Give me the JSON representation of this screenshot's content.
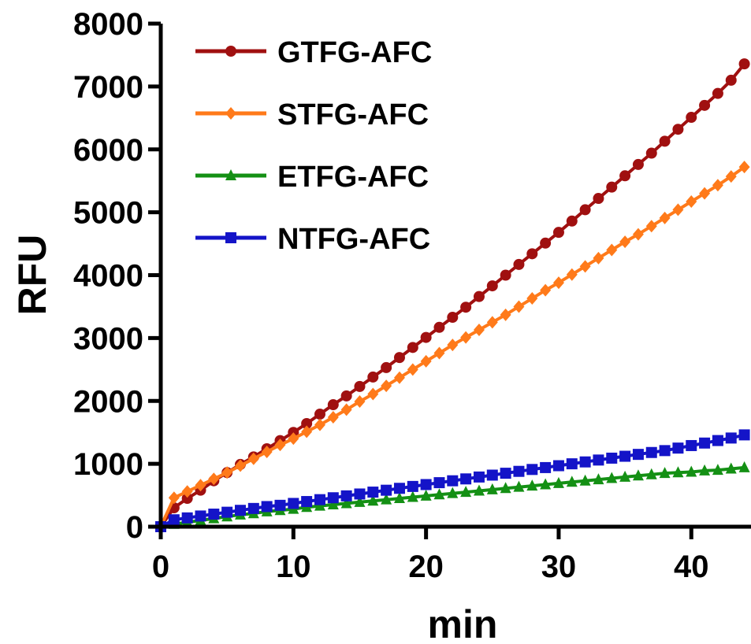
{
  "chart_data": {
    "type": "line",
    "title": "",
    "xlabel": "min",
    "ylabel": "RFU",
    "xlim": [
      0,
      44.5
    ],
    "ylim": [
      0,
      8000
    ],
    "xticks": [
      0,
      10,
      20,
      30,
      40
    ],
    "yticks": [
      0,
      1000,
      2000,
      3000,
      4000,
      5000,
      6000,
      7000,
      8000
    ],
    "grid": false,
    "legend": "top-left",
    "x": [
      0,
      1,
      2,
      3,
      4,
      5,
      6,
      7,
      8,
      9,
      10,
      11,
      12,
      13,
      14,
      15,
      16,
      17,
      18,
      19,
      20,
      21,
      22,
      23,
      24,
      25,
      26,
      27,
      28,
      29,
      30,
      31,
      32,
      33,
      34,
      35,
      36,
      37,
      38,
      39,
      40,
      41,
      42,
      43,
      44
    ],
    "series": [
      {
        "name": "GTFG-AFC",
        "color": "#a01010",
        "marker": "circle",
        "values": [
          0,
          300,
          450,
          580,
          730,
          860,
          990,
          1110,
          1240,
          1370,
          1500,
          1640,
          1790,
          1940,
          2080,
          2230,
          2380,
          2530,
          2690,
          2850,
          3010,
          3170,
          3330,
          3490,
          3660,
          3830,
          4000,
          4170,
          4340,
          4510,
          4680,
          4860,
          5040,
          5220,
          5400,
          5580,
          5760,
          5940,
          6130,
          6320,
          6510,
          6700,
          6890,
          7100,
          7360
        ]
      },
      {
        "name": "STFG-AFC",
        "color": "#ff7a1a",
        "marker": "diamond",
        "values": [
          0,
          460,
          560,
          660,
          760,
          860,
          970,
          1080,
          1190,
          1300,
          1400,
          1510,
          1620,
          1740,
          1860,
          1990,
          2110,
          2240,
          2370,
          2500,
          2630,
          2760,
          2890,
          3010,
          3130,
          3250,
          3370,
          3500,
          3630,
          3760,
          3880,
          4010,
          4140,
          4270,
          4400,
          4530,
          4650,
          4780,
          4910,
          5040,
          5170,
          5300,
          5430,
          5570,
          5720
        ]
      },
      {
        "name": "ETFG-AFC",
        "color": "#149014",
        "marker": "triangle",
        "values": [
          0,
          40,
          70,
          100,
          130,
          160,
          190,
          210,
          240,
          260,
          280,
          310,
          330,
          350,
          370,
          390,
          410,
          430,
          450,
          470,
          490,
          510,
          530,
          550,
          570,
          590,
          610,
          630,
          650,
          670,
          690,
          710,
          730,
          750,
          770,
          790,
          810,
          830,
          850,
          860,
          870,
          890,
          900,
          920,
          940
        ]
      },
      {
        "name": "NTFG-AFC",
        "color": "#1414c8",
        "marker": "square",
        "values": [
          0,
          110,
          140,
          170,
          200,
          230,
          260,
          290,
          320,
          340,
          370,
          400,
          430,
          460,
          490,
          520,
          550,
          580,
          610,
          640,
          670,
          700,
          730,
          760,
          790,
          820,
          850,
          880,
          910,
          940,
          970,
          1000,
          1030,
          1060,
          1090,
          1120,
          1150,
          1180,
          1210,
          1250,
          1290,
          1330,
          1370,
          1410,
          1460
        ]
      }
    ]
  }
}
